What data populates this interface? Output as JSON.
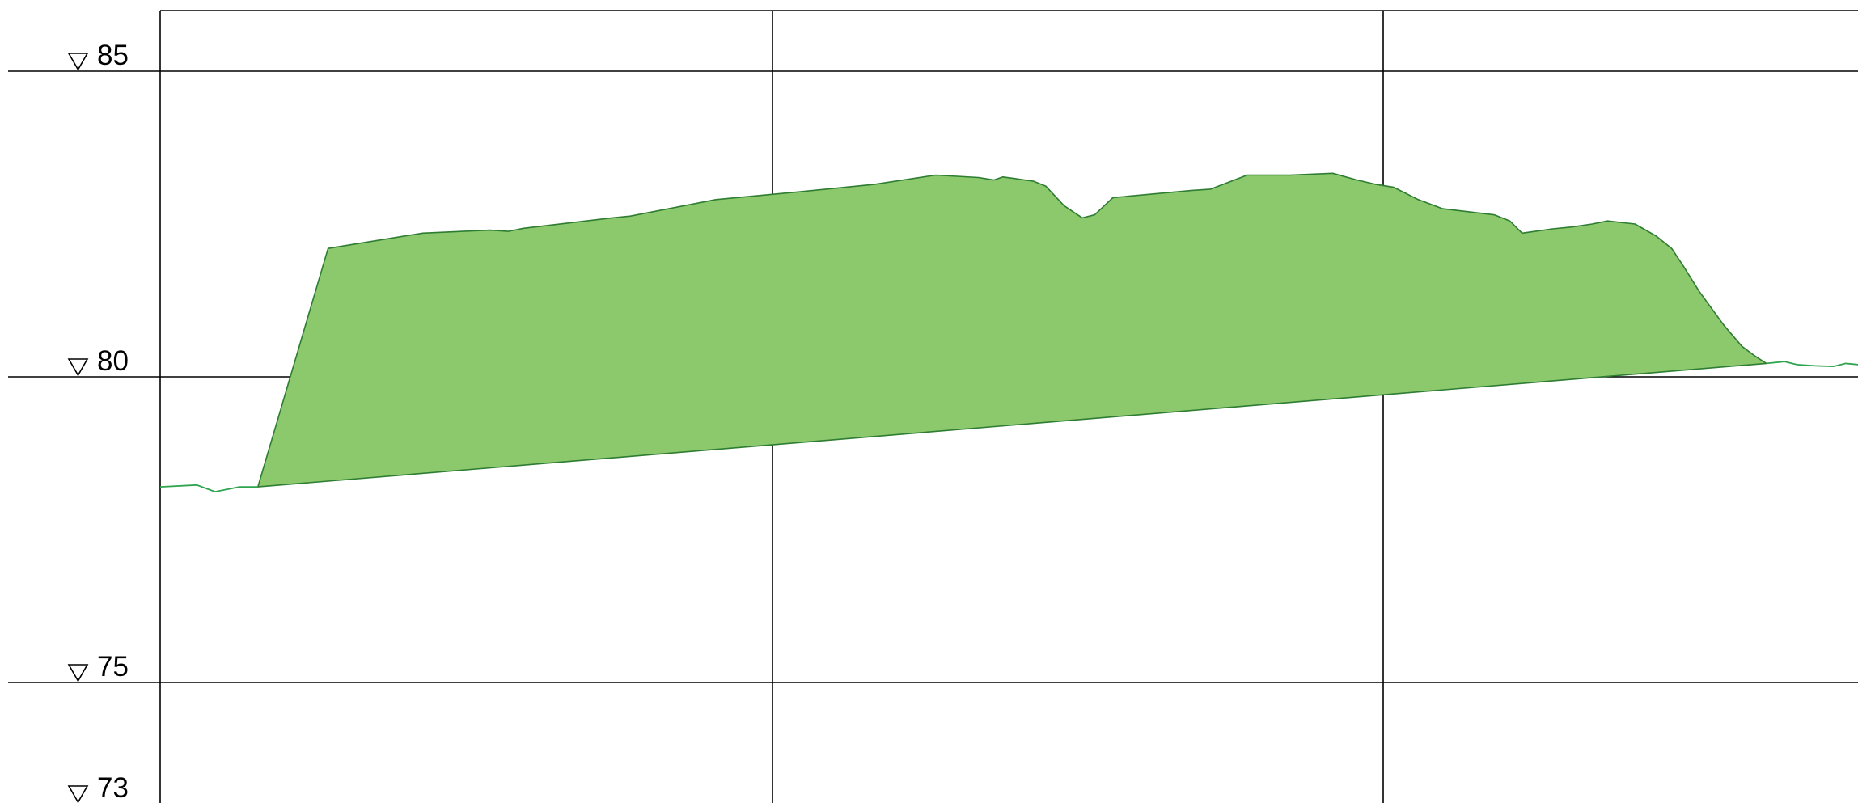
{
  "elevation_labels": [
    "85",
    "80",
    "75",
    "73"
  ],
  "elevation_marker_symbol": "triangle-down-icon",
  "colors": {
    "fill": "#8cc86c",
    "fill_stroke": "#2e7d32",
    "ground_line": "#2ea44f",
    "grid": "#000000"
  },
  "chart_data": {
    "type": "area",
    "ylim": [
      73,
      86
    ],
    "y_ticks": [
      85,
      80,
      75,
      73
    ],
    "grid": true,
    "ground_left": [
      [
        0,
        78.2
      ],
      [
        0.6,
        78.23
      ],
      [
        0.9,
        78.12
      ],
      [
        1.3,
        78.2
      ],
      [
        1.6,
        78.2
      ]
    ],
    "fill_top": [
      [
        1.6,
        78.2
      ],
      [
        2.75,
        82.1
      ],
      [
        4.3,
        82.35
      ],
      [
        5.4,
        82.4
      ],
      [
        5.7,
        82.38
      ],
      [
        5.95,
        82.43
      ],
      [
        7.4,
        82.6
      ],
      [
        7.7,
        82.63
      ],
      [
        9.1,
        82.9
      ],
      [
        10.5,
        83.03
      ],
      [
        11.7,
        83.15
      ],
      [
        12.7,
        83.3
      ],
      [
        13.4,
        83.26
      ],
      [
        13.65,
        83.22
      ],
      [
        13.8,
        83.27
      ],
      [
        13.95,
        83.25
      ],
      [
        14.3,
        83.2
      ],
      [
        14.5,
        83.12
      ],
      [
        14.8,
        82.8
      ],
      [
        14.95,
        82.7
      ],
      [
        15.1,
        82.6
      ],
      [
        15.3,
        82.65
      ],
      [
        15.6,
        82.93
      ],
      [
        15.8,
        82.95
      ],
      [
        16.9,
        83.05
      ],
      [
        17.2,
        83.07
      ],
      [
        17.8,
        83.3
      ],
      [
        18.5,
        83.3
      ],
      [
        19.2,
        83.33
      ],
      [
        19.6,
        83.22
      ],
      [
        19.9,
        83.15
      ],
      [
        20.2,
        83.1
      ],
      [
        20.6,
        82.9
      ],
      [
        21.0,
        82.75
      ],
      [
        21.85,
        82.65
      ],
      [
        22.1,
        82.55
      ],
      [
        22.3,
        82.35
      ],
      [
        22.8,
        82.42
      ],
      [
        23.1,
        82.45
      ],
      [
        23.45,
        82.5
      ],
      [
        23.7,
        82.55
      ],
      [
        24.15,
        82.5
      ],
      [
        24.5,
        82.3
      ],
      [
        24.75,
        82.1
      ],
      [
        24.95,
        81.8
      ],
      [
        25.2,
        81.4
      ],
      [
        25.6,
        80.85
      ],
      [
        25.9,
        80.5
      ],
      [
        26.1,
        80.35
      ],
      [
        26.3,
        80.22
      ]
    ],
    "fill_bottom": [
      [
        26.3,
        80.22
      ],
      [
        1.6,
        78.2
      ]
    ],
    "ground_right": [
      [
        26.3,
        80.22
      ],
      [
        26.6,
        80.25
      ],
      [
        26.8,
        80.2
      ],
      [
        27.1,
        80.18
      ],
      [
        27.4,
        80.17
      ],
      [
        27.6,
        80.22
      ],
      [
        27.8,
        80.2
      ],
      [
        28.2,
        80.3
      ],
      [
        28.5,
        80.3
      ]
    ]
  }
}
